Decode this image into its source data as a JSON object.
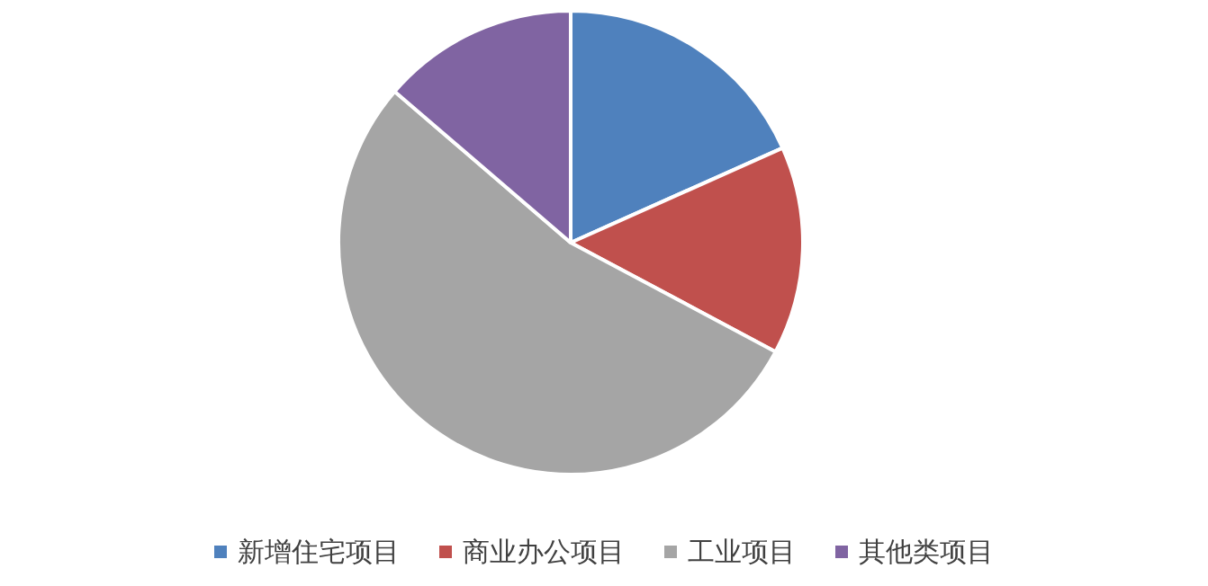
{
  "chart_data": {
    "type": "pie",
    "categories": [
      "新增住宅项目",
      "商业办公项目",
      "工业项目",
      "其他类项目"
    ],
    "values": [
      18.3,
      14.5,
      53.5,
      13.7
    ],
    "colors": [
      "#4f81bd",
      "#c0504d",
      "#a5a5a5",
      "#8064a2"
    ],
    "legend": "bottom"
  }
}
